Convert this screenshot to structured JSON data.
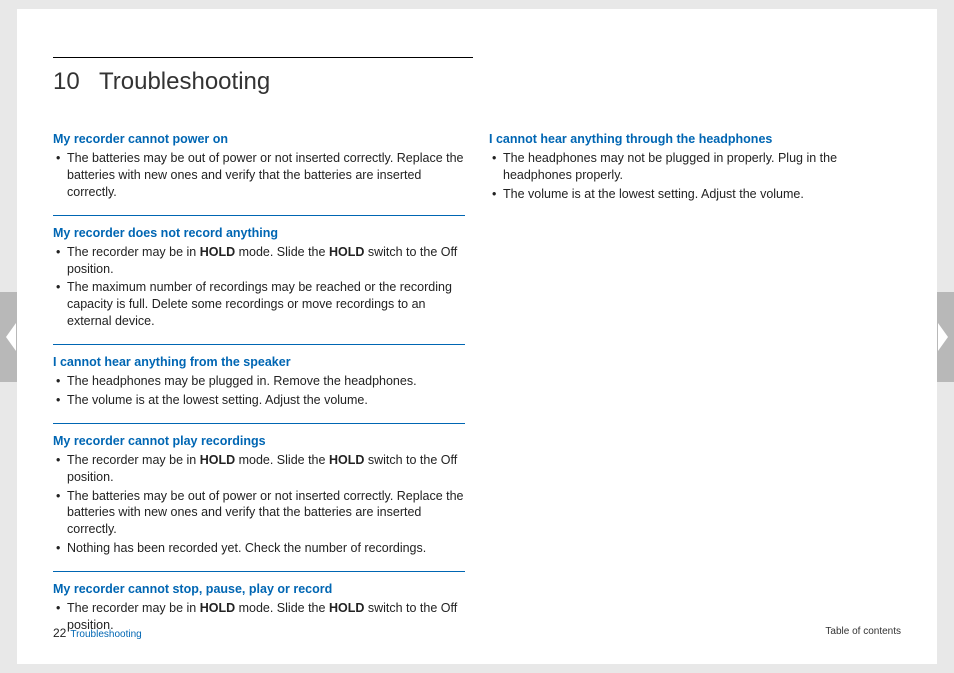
{
  "colors": {
    "heading_blue": "#0066b3",
    "text": "#222222",
    "page_bg": "#ffffff",
    "outer_bg": "#e8e8e8",
    "arrow_bg": "#b8b8b8",
    "arrow_fill": "#ffffff"
  },
  "typography": {
    "title_fontsize": 24,
    "heading_fontsize": 12.5,
    "body_fontsize": 12.5,
    "footer_fontsize": 10
  },
  "chapter": {
    "number": "10",
    "title": "Troubleshooting"
  },
  "left_column": [
    {
      "heading": "My recorder cannot power on",
      "items": [
        "The batteries may be out of power or not inserted correctly. Replace the batteries with new ones and verify that the batteries are inserted correctly."
      ]
    },
    {
      "heading": "My recorder does not record anything",
      "items": [
        "The recorder may be in <b>HOLD</b> mode. Slide the <b>HOLD</b> switch to the Off position.",
        "The maximum number of recordings may be reached or the recording capacity is full. Delete some recordings or move recordings to an external device."
      ]
    },
    {
      "heading": "I cannot hear anything from the speaker",
      "items": [
        "The headphones may be plugged in. Remove the headphones.",
        "The volume is at the lowest setting. Adjust the volume."
      ]
    },
    {
      "heading": "My recorder cannot play recordings",
      "items": [
        "The recorder may be in <b>HOLD</b> mode. Slide the <b>HOLD</b> switch to the Off position.",
        "The batteries may be out of power or not inserted correctly. Replace the batteries with new ones and verify that the batteries are inserted correctly.",
        "Nothing has been recorded yet. Check the number of recordings."
      ]
    },
    {
      "heading": "My recorder cannot stop, pause, play or record",
      "items": [
        "The recorder may be in <b>HOLD</b> mode. Slide the <b>HOLD</b> switch to the Off position."
      ]
    }
  ],
  "right_column": [
    {
      "heading": "I cannot hear anything through the headphones",
      "items": [
        "The headphones may not be plugged in properly. Plug in the headphones properly.",
        "The volume is at the lowest setting. Adjust the volume."
      ]
    }
  ],
  "footer": {
    "page_number": "22",
    "page_name": "Troubleshooting",
    "right_label": "Table of contents"
  }
}
